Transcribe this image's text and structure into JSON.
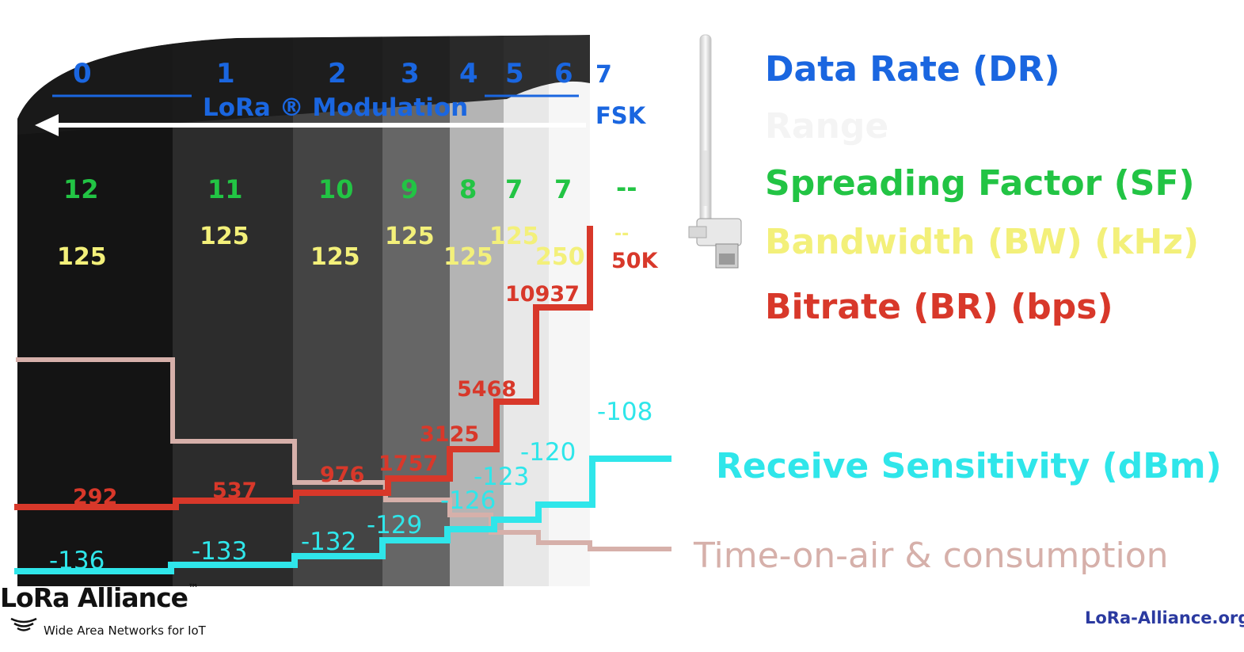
{
  "colors": {
    "data_rate": "#1a66e0",
    "range": "#f4f4f4",
    "spreading_factor": "#22c444",
    "bandwidth": "#f3f07a",
    "bitrate": "#d8382a",
    "sensitivity": "#2fe6ea",
    "time_on_air": "#d6b0aa",
    "footer_url": "#2b3aa0"
  },
  "legend": {
    "data_rate": "Data Rate (DR)",
    "range": "Range",
    "spreading_factor": "Spreading Factor (SF)",
    "bandwidth": "Bandwidth (BW) (kHz)",
    "bitrate": "Bitrate (BR) (bps)",
    "sensitivity": "Receive Sensitivity (dBm)",
    "time_on_air": "Time-on-air & consumption"
  },
  "modulation_label": "LoRa ® Modulation",
  "fsk_label": "FSK",
  "columns": [
    {
      "dr": "0",
      "sf": "12",
      "bw": "125",
      "br": "292",
      "sens": "-136"
    },
    {
      "dr": "1",
      "sf": "11",
      "bw": "125",
      "br": "537",
      "sens": "-133"
    },
    {
      "dr": "2",
      "sf": "10",
      "bw": "125",
      "br": "976",
      "sens": "-132"
    },
    {
      "dr": "3",
      "sf": "9",
      "bw": "125",
      "br": "1757",
      "sens": "-129"
    },
    {
      "dr": "4",
      "sf": "8",
      "bw": "125",
      "br": "3125",
      "sens": "-126"
    },
    {
      "dr": "5",
      "sf": "7",
      "bw": "125",
      "br": "5468",
      "sens": "-123"
    },
    {
      "dr": "6",
      "sf": "7",
      "bw": "250",
      "br": "10937",
      "sens": "-120"
    },
    {
      "dr": "7",
      "sf": "--",
      "bw": "--",
      "br": "50K",
      "sens": "-108"
    }
  ],
  "logo": {
    "title": "LoRa Alliance",
    "tm": "™",
    "subtitle": "Wide Area Networks for IoT"
  },
  "footer_url": "LoRa-Alliance.org"
}
